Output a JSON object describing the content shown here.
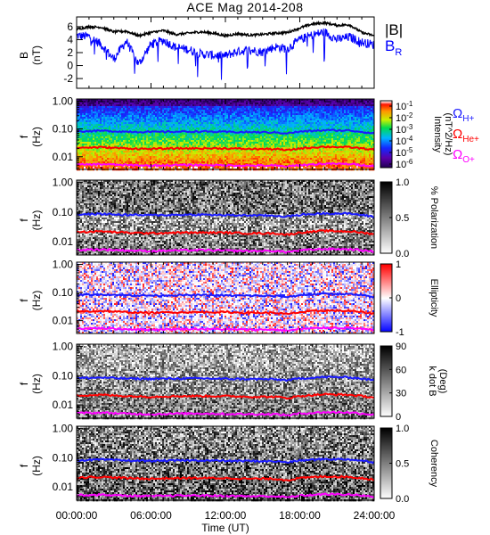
{
  "figure": {
    "title": "ACE Mag 2014-208",
    "xlabel": "Time (UT)",
    "xticks": [
      "00:00:00",
      "06:00:00",
      "12:00:00",
      "18:00:00",
      "24:00:00"
    ]
  },
  "gyro_labels": {
    "h": "ΩH+",
    "he": "ΩHe+",
    "o": "ΩO+"
  },
  "colors": {
    "total_field": "#000000",
    "br_field": "#0000ff",
    "h_gyro": "#1a1aff",
    "he_gyro": "#ff0000",
    "o_gyro": "#ff00ff"
  },
  "chart_data": [
    {
      "type": "line",
      "ylabel": "B (nT)",
      "yticks": [
        "-2",
        "0",
        "2",
        "4",
        "6"
      ],
      "ylim": [
        -3.5,
        7.5
      ],
      "xlim": [
        0,
        24
      ],
      "series": [
        {
          "name": "|B|",
          "x": [
            0,
            1,
            2,
            3,
            4,
            5,
            6,
            7,
            8,
            9,
            10,
            11,
            12,
            13,
            14,
            15,
            16,
            17,
            18,
            19,
            20,
            21,
            22,
            23,
            24
          ],
          "values": [
            5.6,
            6.0,
            5.9,
            5.2,
            5.3,
            4.6,
            5.1,
            5.4,
            4.8,
            5.0,
            5.2,
            5.0,
            4.6,
            4.9,
            4.7,
            4.8,
            5.0,
            5.1,
            5.8,
            6.4,
            6.6,
            6.2,
            6.3,
            5.1,
            4.6
          ]
        },
        {
          "name": "BR",
          "x": [
            0,
            1,
            2,
            3,
            4,
            5,
            6,
            7,
            8,
            9,
            10,
            11,
            12,
            13,
            14,
            15,
            16,
            17,
            18,
            19,
            20,
            21,
            22,
            23,
            24
          ],
          "values": [
            4.6,
            4.5,
            3.2,
            1.0,
            3.8,
            0.2,
            3.3,
            3.9,
            2.8,
            2.5,
            1.8,
            1.6,
            1.5,
            2.2,
            2.4,
            2.1,
            2.9,
            2.6,
            4.0,
            4.7,
            5.2,
            4.0,
            4.4,
            3.6,
            3.2
          ]
        }
      ]
    },
    {
      "type": "heatmap",
      "ylabel": "f (Hz)",
      "yticks": [
        "0.01",
        "0.10",
        "1.00"
      ],
      "colorbar_label": "Intensity (nT^2/Hz)",
      "colorbar_ticks": [
        "10^-1",
        "10^-2",
        "10^-3",
        "10^-4",
        "10^-5",
        "10^-6"
      ]
    },
    {
      "type": "heatmap",
      "ylabel": "f (Hz)",
      "yticks": [
        "0.01",
        "0.10",
        "1.00"
      ],
      "colorbar_label": "% Polarization",
      "colorbar_ticks": [
        "0.0",
        "0.5",
        "1.0"
      ]
    },
    {
      "type": "heatmap",
      "ylabel": "f (Hz)",
      "yticks": [
        "0.01",
        "0.10",
        "1.00"
      ],
      "colorbar_label": "Ellipticity",
      "colorbar_ticks": [
        "-1",
        "0",
        "1"
      ]
    },
    {
      "type": "heatmap",
      "ylabel": "f (Hz)",
      "yticks": [
        "0.01",
        "0.10",
        "1.00"
      ],
      "colorbar_label": "k dot B (Deg)",
      "colorbar_ticks": [
        "0",
        "30",
        "60",
        "90"
      ]
    },
    {
      "type": "heatmap",
      "ylabel": "f (Hz)",
      "yticks": [
        "0.01",
        "0.10",
        "1.00"
      ],
      "colorbar_label": "Coherency",
      "colorbar_ticks": [
        "0.0",
        "0.5",
        "1.0"
      ]
    }
  ],
  "gyrofrequencies_hz": {
    "x": [
      0,
      2,
      4,
      6,
      8,
      10,
      12,
      14,
      16,
      17,
      18,
      20,
      22,
      24
    ],
    "h": [
      0.082,
      0.086,
      0.08,
      0.078,
      0.08,
      0.081,
      0.078,
      0.077,
      0.075,
      0.07,
      0.08,
      0.09,
      0.088,
      0.07
    ],
    "he": [
      0.021,
      0.022,
      0.02,
      0.019,
      0.02,
      0.02,
      0.02,
      0.019,
      0.019,
      0.017,
      0.02,
      0.023,
      0.022,
      0.018
    ],
    "o": [
      0.0052,
      0.0054,
      0.005,
      0.0048,
      0.005,
      0.0051,
      0.0049,
      0.0048,
      0.0048,
      0.0044,
      0.005,
      0.0056,
      0.0055,
      0.0046
    ]
  }
}
